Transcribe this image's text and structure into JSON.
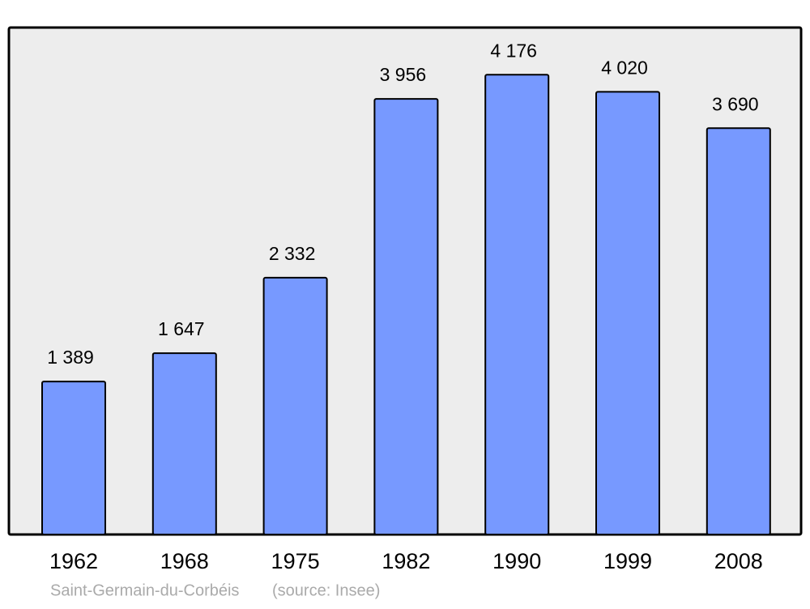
{
  "chart_data": {
    "type": "bar",
    "categories": [
      "1962",
      "1968",
      "1975",
      "1982",
      "1990",
      "1999",
      "2008"
    ],
    "values": [
      1389,
      1647,
      2332,
      3956,
      4176,
      4020,
      3690
    ],
    "value_labels": [
      "1 389",
      "1 647",
      "2 332",
      "3 956",
      "4 176",
      "4 020",
      "3 690"
    ],
    "color": "#7799ff",
    "caption": "Saint-Germain-du-Corbéis",
    "source": "(source: Insee)"
  }
}
